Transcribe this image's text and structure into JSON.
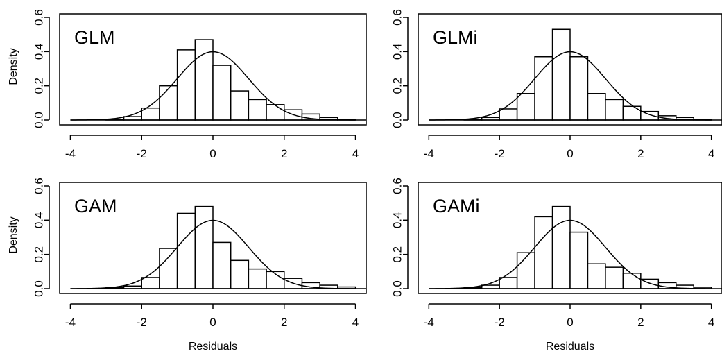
{
  "chart_data": [
    {
      "type": "bar",
      "panel_label": "GLM",
      "ylabel": "Density",
      "xlabel": "",
      "xlim": [
        -4,
        4
      ],
      "ylim": [
        0,
        0.6
      ],
      "x_ticks": [
        "-4",
        "-2",
        "0",
        "2",
        "4"
      ],
      "y_ticks": [
        "0.0",
        "0.2",
        "0.4",
        "0.6"
      ],
      "bin_edges": [
        -4.0,
        -3.5,
        -3.0,
        -2.5,
        -2.0,
        -1.5,
        -1.0,
        -0.5,
        0.0,
        0.5,
        1.0,
        1.5,
        2.0,
        2.5,
        3.0,
        3.5,
        4.0
      ],
      "values": [
        0,
        0,
        0.005,
        0.02,
        0.07,
        0.2,
        0.41,
        0.47,
        0.32,
        0.17,
        0.12,
        0.09,
        0.06,
        0.035,
        0.015,
        0.005
      ],
      "curve": "standard normal density"
    },
    {
      "type": "bar",
      "panel_label": "GLMi",
      "ylabel": "",
      "xlabel": "",
      "xlim": [
        -4,
        4
      ],
      "ylim": [
        0,
        0.6
      ],
      "x_ticks": [
        "-4",
        "-2",
        "0",
        "2",
        "4"
      ],
      "y_ticks": [
        "0.0",
        "0.2",
        "0.4",
        "0.6"
      ],
      "bin_edges": [
        -4.0,
        -3.5,
        -3.0,
        -2.5,
        -2.0,
        -1.5,
        -1.0,
        -0.5,
        0.0,
        0.5,
        1.0,
        1.5,
        2.0,
        2.5,
        3.0,
        3.5,
        4.0
      ],
      "values": [
        0,
        0,
        0.005,
        0.015,
        0.065,
        0.155,
        0.37,
        0.53,
        0.37,
        0.155,
        0.12,
        0.08,
        0.05,
        0.025,
        0.015,
        0.003
      ],
      "curve": "standard normal density"
    },
    {
      "type": "bar",
      "panel_label": "GAM",
      "ylabel": "Density",
      "xlabel": "Residuals",
      "xlim": [
        -4,
        4
      ],
      "ylim": [
        0,
        0.6
      ],
      "x_ticks": [
        "-4",
        "-2",
        "0",
        "2",
        "4"
      ],
      "y_ticks": [
        "0.0",
        "0.2",
        "0.4",
        "0.6"
      ],
      "bin_edges": [
        -4.0,
        -3.5,
        -3.0,
        -2.5,
        -2.0,
        -1.5,
        -1.0,
        -0.5,
        0.0,
        0.5,
        1.0,
        1.5,
        2.0,
        2.5,
        3.0,
        3.5,
        4.0
      ],
      "values": [
        0,
        0,
        0.005,
        0.015,
        0.065,
        0.235,
        0.44,
        0.48,
        0.27,
        0.165,
        0.115,
        0.1,
        0.06,
        0.035,
        0.02,
        0.01
      ],
      "curve": "standard normal density"
    },
    {
      "type": "bar",
      "panel_label": "GAMi",
      "ylabel": "",
      "xlabel": "Residuals",
      "xlim": [
        -4,
        4
      ],
      "ylim": [
        0,
        0.6
      ],
      "x_ticks": [
        "-4",
        "-2",
        "0",
        "2",
        "4"
      ],
      "y_ticks": [
        "0.0",
        "0.2",
        "0.4",
        "0.6"
      ],
      "bin_edges": [
        -4.0,
        -3.5,
        -3.0,
        -2.5,
        -2.0,
        -1.5,
        -1.0,
        -0.5,
        0.0,
        0.5,
        1.0,
        1.5,
        2.0,
        2.5,
        3.0,
        3.5,
        4.0
      ],
      "values": [
        0,
        0,
        0.005,
        0.02,
        0.065,
        0.21,
        0.42,
        0.48,
        0.33,
        0.145,
        0.125,
        0.09,
        0.055,
        0.035,
        0.02,
        0.008
      ],
      "curve": "standard normal density"
    }
  ]
}
